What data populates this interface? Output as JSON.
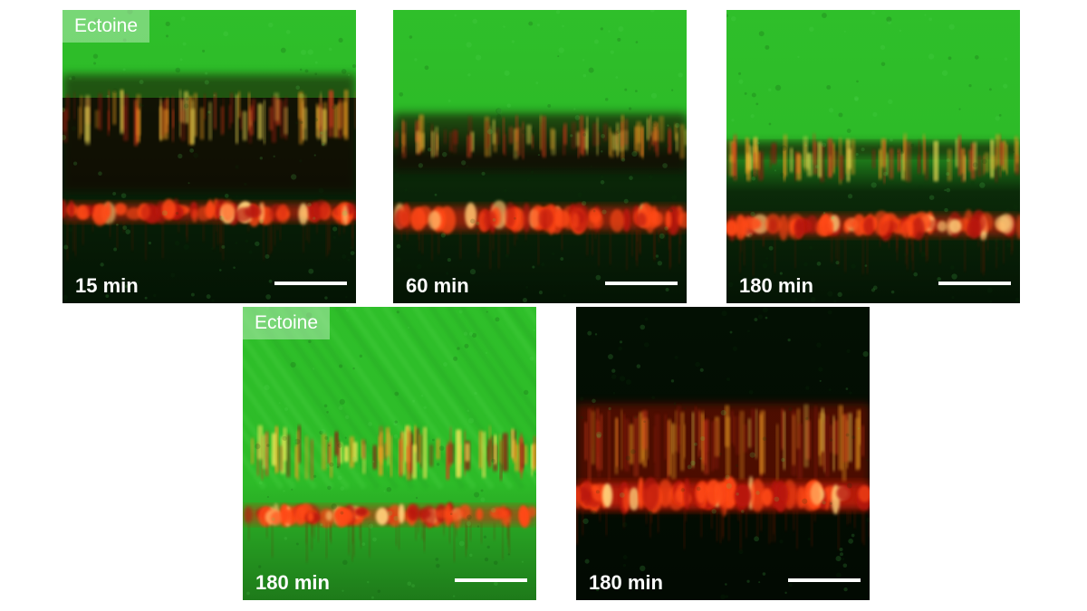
{
  "panels": [
    {
      "label": "Ectoine",
      "time": "15 min"
    },
    {
      "label": "",
      "time": "60 min"
    },
    {
      "label": "",
      "time": "180 min"
    },
    {
      "label": "Ectoine",
      "time": "180 min"
    },
    {
      "label": "",
      "time": "180 min"
    }
  ]
}
